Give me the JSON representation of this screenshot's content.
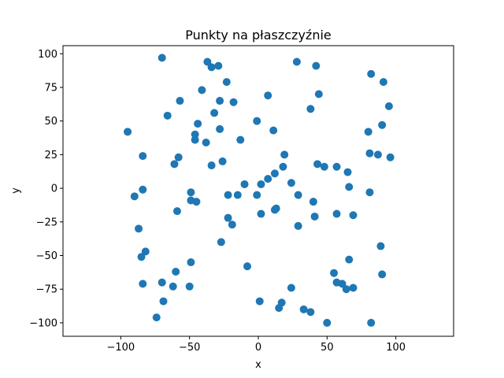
{
  "chart_data": {
    "type": "scatter",
    "title": "Punkty na płaszczyźnie",
    "xlabel": "x",
    "ylabel": "y",
    "xlim": [
      -142,
      142
    ],
    "ylim": [
      -110,
      106
    ],
    "xticks": [
      "−100",
      "−50",
      "0",
      "50",
      "100"
    ],
    "xtick_values": [
      -100,
      -50,
      0,
      50,
      100
    ],
    "yticks": [
      "−100",
      "−75",
      "−50",
      "−25",
      "0",
      "25",
      "50",
      "75",
      "100"
    ],
    "ytick_values": [
      -100,
      -75,
      -50,
      -25,
      0,
      25,
      50,
      75,
      100
    ],
    "grid": false,
    "marker_color": "#1f77b4",
    "series": [
      {
        "points": [
          [
            -70,
            97
          ],
          [
            -37,
            94
          ],
          [
            -34,
            90
          ],
          [
            -29,
            91
          ],
          [
            28,
            94
          ],
          [
            42,
            91
          ],
          [
            82,
            85
          ],
          [
            91,
            79
          ],
          [
            -23,
            79
          ],
          [
            -41,
            73
          ],
          [
            -28,
            65
          ],
          [
            -18,
            64
          ],
          [
            7,
            69
          ],
          [
            44,
            70
          ],
          [
            -57,
            65
          ],
          [
            95,
            61
          ],
          [
            38,
            59
          ],
          [
            -66,
            54
          ],
          [
            -32,
            56
          ],
          [
            -1,
            50
          ],
          [
            90,
            47
          ],
          [
            -95,
            42
          ],
          [
            -44,
            48
          ],
          [
            -28,
            44
          ],
          [
            11,
            43
          ],
          [
            80,
            42
          ],
          [
            -46,
            40
          ],
          [
            -46,
            36
          ],
          [
            -38,
            34
          ],
          [
            -13,
            36
          ],
          [
            -84,
            24
          ],
          [
            -58,
            23
          ],
          [
            -61,
            18
          ],
          [
            19,
            25
          ],
          [
            81,
            26
          ],
          [
            87,
            25
          ],
          [
            96,
            23
          ],
          [
            -26,
            20
          ],
          [
            -34,
            17
          ],
          [
            18,
            16
          ],
          [
            43,
            18
          ],
          [
            48,
            16
          ],
          [
            57,
            16
          ],
          [
            65,
            12
          ],
          [
            12,
            11
          ],
          [
            7,
            7
          ],
          [
            24,
            4
          ],
          [
            -10,
            3
          ],
          [
            2,
            3
          ],
          [
            66,
            1
          ],
          [
            -84,
            -1
          ],
          [
            -49,
            -3
          ],
          [
            -90,
            -6
          ],
          [
            -22,
            -5
          ],
          [
            -15,
            -5
          ],
          [
            -1,
            -5
          ],
          [
            29,
            -5
          ],
          [
            81,
            -3
          ],
          [
            -49,
            -9
          ],
          [
            -45,
            -10
          ],
          [
            40,
            -10
          ],
          [
            13,
            -15
          ],
          [
            12,
            -16
          ],
          [
            -59,
            -17
          ],
          [
            2,
            -19
          ],
          [
            41,
            -21
          ],
          [
            57,
            -19
          ],
          [
            69,
            -20
          ],
          [
            -22,
            -22
          ],
          [
            -19,
            -27
          ],
          [
            29,
            -28
          ],
          [
            -87,
            -30
          ],
          [
            -27,
            -40
          ],
          [
            -82,
            -47
          ],
          [
            -85,
            -51
          ],
          [
            89,
            -43
          ],
          [
            -49,
            -55
          ],
          [
            66,
            -53
          ],
          [
            -8,
            -58
          ],
          [
            55,
            -63
          ],
          [
            90,
            -64
          ],
          [
            -60,
            -62
          ],
          [
            57,
            -70
          ],
          [
            61,
            -71
          ],
          [
            64,
            -75
          ],
          [
            69,
            -74
          ],
          [
            -84,
            -71
          ],
          [
            -70,
            -70
          ],
          [
            -62,
            -73
          ],
          [
            -50,
            -73
          ],
          [
            24,
            -74
          ],
          [
            -69,
            -84
          ],
          [
            1,
            -84
          ],
          [
            17,
            -85
          ],
          [
            15,
            -89
          ],
          [
            33,
            -90
          ],
          [
            38,
            -92
          ],
          [
            -74,
            -96
          ],
          [
            50,
            -100
          ],
          [
            82,
            -100
          ]
        ]
      }
    ]
  }
}
